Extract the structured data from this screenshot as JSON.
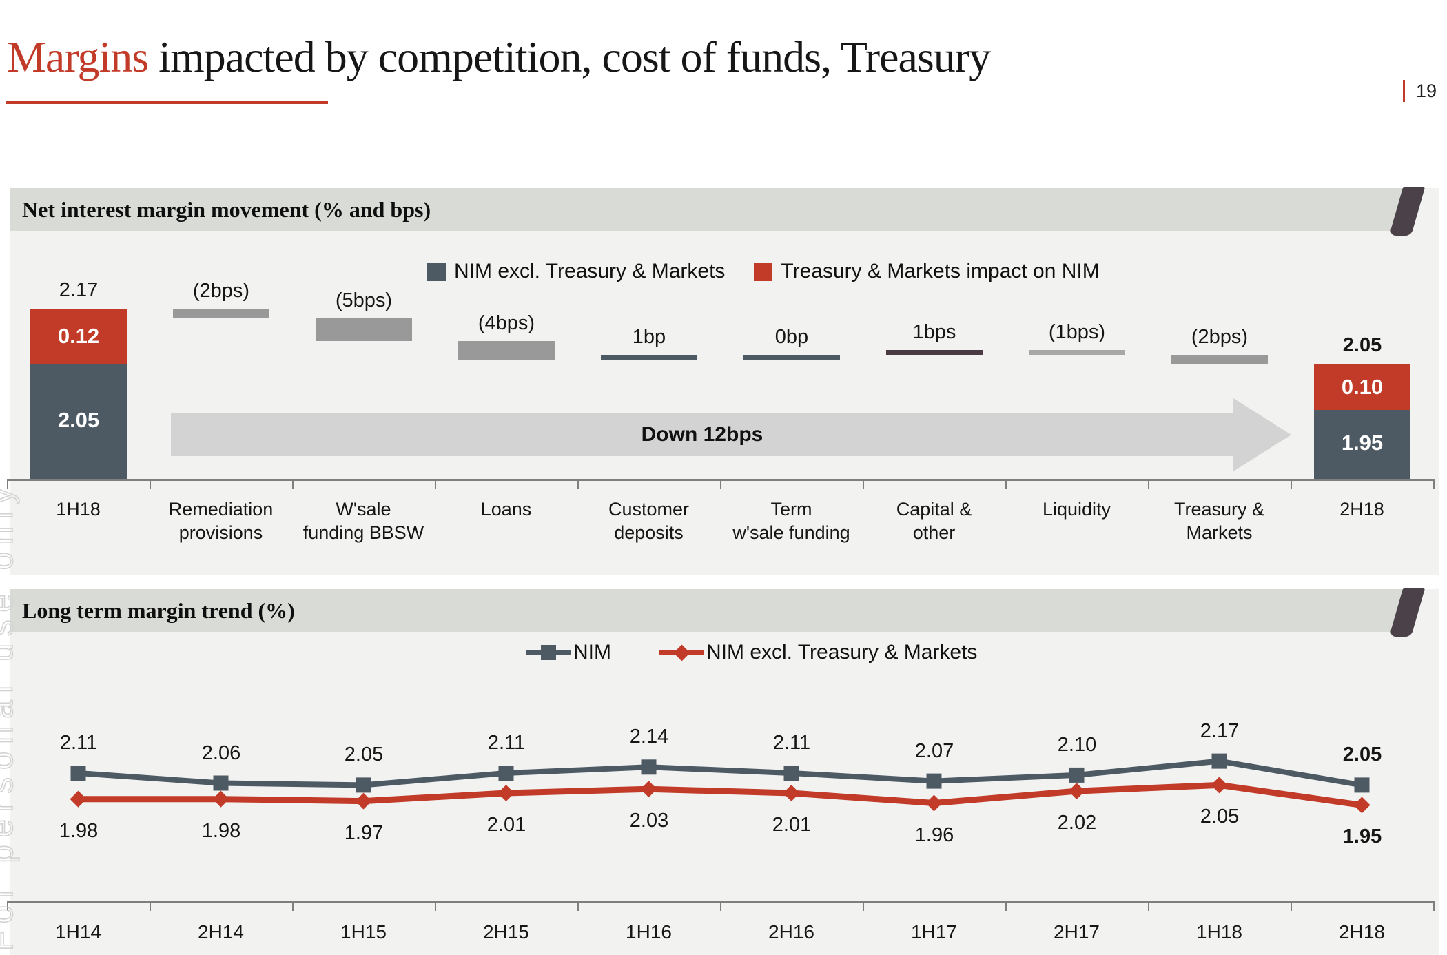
{
  "page": {
    "title_highlight": "Margins",
    "title_rest": " impacted by competition, cost of funds, Treasury",
    "page_number": "19",
    "watermark": "For personal use only"
  },
  "colors": {
    "red": "#c23a28",
    "slate": "#4d5a64",
    "gray": "#999999",
    "light_gray": "#a8a8a8",
    "maroon": "#4a3a43",
    "arrow": "#d3d3d3",
    "panel": "#f2f2f1",
    "band": "#d9dcd6",
    "slash": "#4a4149",
    "axis": "#7f7f7f"
  },
  "chart_data": [
    {
      "type": "waterfall",
      "title": "Net interest margin movement (% and bps)",
      "legend": [
        {
          "label": "NIM excl. Treasury & Markets",
          "color": "#4d5a64"
        },
        {
          "label": "Treasury & Markets impact on NIM",
          "color": "#c23a28"
        }
      ],
      "baseline_pct": 1.8,
      "start_bar": {
        "category": "1H18",
        "total": "2.17",
        "treasury_markets": "0.12",
        "nim_excl": "2.05"
      },
      "end_bar": {
        "category": "2H18",
        "total": "2.05",
        "treasury_markets": "0.10",
        "nim_excl": "1.95"
      },
      "steps": [
        {
          "category": "Remediation\nprovisions",
          "label": "(2bps)",
          "delta_bps": -2,
          "color": "#999999"
        },
        {
          "category": "W'sale\nfunding BBSW",
          "label": "(5bps)",
          "delta_bps": -5,
          "color": "#999999"
        },
        {
          "category": "Loans",
          "label": "(4bps)",
          "delta_bps": -4,
          "color": "#999999"
        },
        {
          "category": "Customer\ndeposits",
          "label": "1bp",
          "delta_bps": 1,
          "color": "#4d5a64"
        },
        {
          "category": "Term\nw'sale funding",
          "label": "0bp",
          "delta_bps": 0,
          "color": "#4d5a64"
        },
        {
          "category": "Capital &\nother",
          "label": "1bps",
          "delta_bps": 1,
          "color": "#4a3a43"
        },
        {
          "category": "Liquidity",
          "label": "(1bps)",
          "delta_bps": -1,
          "color": "#a8a8a8"
        },
        {
          "category": "Treasury &\nMarkets",
          "label": "(2bps)",
          "delta_bps": -2,
          "color": "#999999"
        }
      ],
      "arrow_label": "Down 12bps"
    },
    {
      "type": "line",
      "title": "Long term margin trend (%)",
      "categories": [
        "1H14",
        "2H14",
        "1H15",
        "2H15",
        "1H16",
        "2H16",
        "1H17",
        "2H17",
        "1H18",
        "2H18"
      ],
      "ylim": [
        1.9,
        2.2
      ],
      "grid": false,
      "legend_position": "top-center",
      "series": [
        {
          "name": "NIM",
          "color": "#4d5a64",
          "marker": "square",
          "values": [
            2.11,
            2.06,
            2.05,
            2.11,
            2.14,
            2.11,
            2.07,
            2.1,
            2.17,
            2.05
          ]
        },
        {
          "name": "NIM excl. Treasury & Markets",
          "color": "#c23a28",
          "marker": "diamond",
          "values": [
            1.98,
            1.98,
            1.97,
            2.01,
            2.03,
            2.01,
            1.96,
            2.02,
            2.05,
            1.95
          ]
        }
      ]
    }
  ]
}
